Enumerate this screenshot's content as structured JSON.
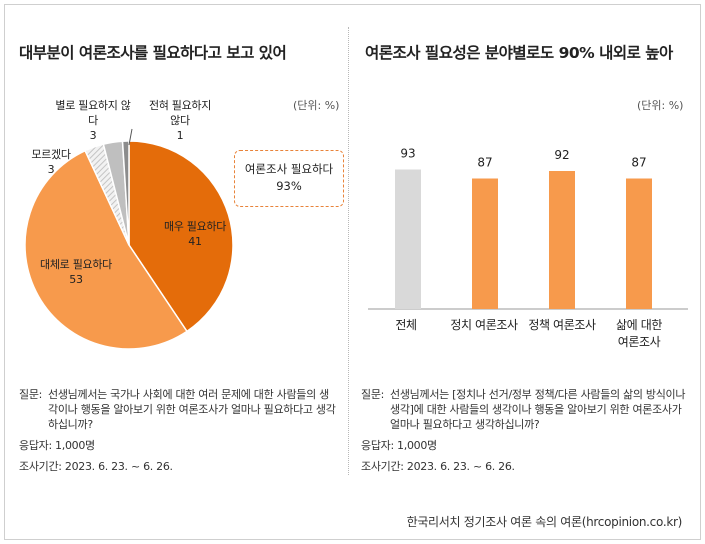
{
  "left_panel": {
    "title": "대부분이 여론조사를 필요하다고 보고 있어",
    "unit": "(단위: %)",
    "callout_label": "여론조사 필요하다",
    "callout_value": "93%",
    "note_question_label": "질문:",
    "note_question_text": "선생님께서는 국가나 사회에 대한 여러 문제에 대한 사람들의 생각이나 행동을 알아보기 위한 여론조사가 얼마나 필요하다고 생각하십니까?",
    "note_respondents": "응답자: 1,000명",
    "note_period": "조사기간: 2023. 6. 23. ~ 6. 26."
  },
  "right_panel": {
    "title": "여론조사 필요성은 분야별로도 90% 내외로 높아",
    "unit": "(단위: %)",
    "note_question_label": "질문:",
    "note_question_text": "선생님께서는 [정치나 선거/정부 정책/다른 사람들의 삶의 방식이나 생각]에 대한 사람들의 생각이나 행동을 알아보기 위한 여론조사가 얼마나 필요하다고 생각하십니까?",
    "note_respondents": "응답자: 1,000명",
    "note_period": "조사기간: 2023. 6. 23. ~ 6. 26."
  },
  "source": "한국리서치 정기조사 여론 속의 여론(hrcopinion.co.kr)",
  "colors": {
    "very_needed": "#e46c0a",
    "somewhat_needed": "#f79a4c",
    "not_very": "#bfbfbf",
    "not_at_all": "#8c8c8c",
    "dont_know": "#d0d0d0",
    "bar_total": "#d9d9d9",
    "bar_field": "#f79a4c"
  },
  "chart_data": [
    {
      "type": "pie",
      "title": "대부분이 여론조사를 필요하다고 보고 있어",
      "unit": "%",
      "slices": [
        {
          "label": "매우 필요하다",
          "value": 41
        },
        {
          "label": "대체로 필요하다",
          "value": 53
        },
        {
          "label": "모르겠다",
          "value": 3
        },
        {
          "label": "별로 필요하지 않다",
          "value": 3
        },
        {
          "label": "전혀 필요하지 않다",
          "value": 1
        }
      ],
      "annotation": {
        "label": "여론조사 필요하다",
        "value": "93%"
      }
    },
    {
      "type": "bar",
      "title": "여론조사 필요성은 분야별로도 90% 내외로 높아",
      "unit": "%",
      "categories": [
        "전체",
        "정치 여론조사",
        "정책 여론조사",
        "삶에 대한 여론조사"
      ],
      "values": [
        93,
        87,
        92,
        87
      ],
      "ylim": [
        0,
        100
      ],
      "grid": false
    }
  ]
}
